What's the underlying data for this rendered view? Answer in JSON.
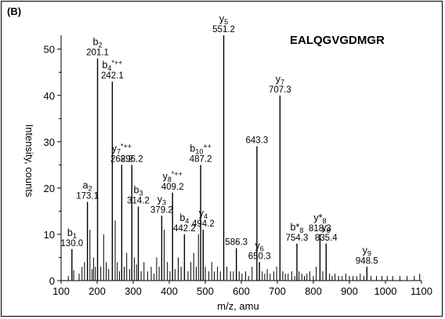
{
  "panel_label": "(B)",
  "chart_data": {
    "type": "bar",
    "title": "EALQGVGDMGR",
    "xlabel": "m/z, amu",
    "ylabel": "Intensity, counts",
    "xlim": [
      100,
      1100
    ],
    "ylim": [
      0,
      53
    ],
    "x_ticks": [
      100,
      200,
      300,
      400,
      500,
      600,
      700,
      800,
      900,
      1000,
      1100
    ],
    "y_ticks": [
      0,
      10,
      20,
      30,
      40,
      50
    ],
    "peaks": [
      {
        "mz": 130.0,
        "intensity": 6.8,
        "ion": "b",
        "sub": "1",
        "sup": "",
        "value": "130.0"
      },
      {
        "mz": 173.1,
        "intensity": 17.0,
        "ion": "a",
        "sub": "2",
        "sup": "",
        "value": "173.1"
      },
      {
        "mz": 201.1,
        "intensity": 48.0,
        "ion": "b",
        "sub": "2",
        "sup": "",
        "value": "201.1"
      },
      {
        "mz": 242.1,
        "intensity": 43.0,
        "ion": "b",
        "sub": "4",
        "sup": "*++",
        "value": "242.1"
      },
      {
        "mz": 268.2,
        "intensity": 25.0,
        "ion": "y",
        "sub": "7",
        "sup": "*++",
        "value": "268.2"
      },
      {
        "mz": 296.2,
        "intensity": 25.0,
        "ion": "",
        "sub": "",
        "sup": "",
        "value": "296.2"
      },
      {
        "mz": 314.2,
        "intensity": 16.0,
        "ion": "b",
        "sub": "3",
        "sup": "",
        "value": "314.2"
      },
      {
        "mz": 379.2,
        "intensity": 14.0,
        "ion": "y",
        "sub": "3",
        "sup": "",
        "value": "379.2"
      },
      {
        "mz": 409.2,
        "intensity": 19.0,
        "ion": "y",
        "sub": "8",
        "sup": "*++",
        "value": "409.2"
      },
      {
        "mz": 442.2,
        "intensity": 10.0,
        "ion": "b",
        "sub": "4",
        "sup": "",
        "value": "442.2"
      },
      {
        "mz": 487.2,
        "intensity": 25.0,
        "ion": "b",
        "sub": "10",
        "sup": "++",
        "value": "487.2"
      },
      {
        "mz": 494.2,
        "intensity": 11.0,
        "ion": "y",
        "sub": "4",
        "sup": "",
        "value": "494.2"
      },
      {
        "mz": 551.2,
        "intensity": 53.0,
        "ion": "y",
        "sub": "5",
        "sup": "",
        "value": "551.2"
      },
      {
        "mz": 586.3,
        "intensity": 7.0,
        "ion": "",
        "sub": "",
        "sup": "",
        "value": "586.3"
      },
      {
        "mz": 643.3,
        "intensity": 29.0,
        "ion": "",
        "sub": "",
        "sup": "",
        "value": "643.3"
      },
      {
        "mz": 650.3,
        "intensity": 4.0,
        "ion": "y",
        "sub": "6",
        "sup": "",
        "value": "650.3"
      },
      {
        "mz": 707.3,
        "intensity": 40.0,
        "ion": "y",
        "sub": "7",
        "sup": "",
        "value": "707.3"
      },
      {
        "mz": 754.3,
        "intensity": 8.0,
        "ion": "b*",
        "sub": "8",
        "sup": "",
        "value": "754.3"
      },
      {
        "mz": 818.3,
        "intensity": 10.0,
        "ion": "y*",
        "sub": "8",
        "sup": "",
        "value": "818.3"
      },
      {
        "mz": 835.4,
        "intensity": 8.0,
        "ion": "y",
        "sub": "8",
        "sup": "",
        "value": "835.4"
      },
      {
        "mz": 948.5,
        "intensity": 3.0,
        "ion": "y",
        "sub": "9",
        "sup": "",
        "value": "948.5"
      }
    ],
    "minor_peaks": [
      [
        120,
        1.0
      ],
      [
        135,
        2.2
      ],
      [
        150,
        1.5
      ],
      [
        158,
        3.0
      ],
      [
        165,
        4.0
      ],
      [
        180,
        11.0
      ],
      [
        186,
        2.5
      ],
      [
        190,
        5.0
      ],
      [
        195,
        3.0
      ],
      [
        210,
        3.0
      ],
      [
        218,
        10.0
      ],
      [
        225,
        4.0
      ],
      [
        232,
        2.5
      ],
      [
        250,
        13.0
      ],
      [
        256,
        4.0
      ],
      [
        262,
        2.0
      ],
      [
        275,
        3.0
      ],
      [
        282,
        6.0
      ],
      [
        290,
        2.5
      ],
      [
        303,
        5.0
      ],
      [
        309,
        3.5
      ],
      [
        322,
        2.0
      ],
      [
        330,
        4.0
      ],
      [
        340,
        2.0
      ],
      [
        350,
        3.0
      ],
      [
        358,
        1.5
      ],
      [
        365,
        5.0
      ],
      [
        372,
        3.0
      ],
      [
        386,
        11.0
      ],
      [
        395,
        4.0
      ],
      [
        402,
        2.0
      ],
      [
        416,
        2.5
      ],
      [
        425,
        5.0
      ],
      [
        433,
        3.0
      ],
      [
        452,
        2.0
      ],
      [
        460,
        4.0
      ],
      [
        468,
        6.0
      ],
      [
        475,
        3.0
      ],
      [
        481,
        10.0
      ],
      [
        500,
        3.0
      ],
      [
        510,
        2.0
      ],
      [
        518,
        4.0
      ],
      [
        525,
        2.0
      ],
      [
        534,
        3.0
      ],
      [
        542,
        2.0
      ],
      [
        560,
        3.0
      ],
      [
        570,
        2.0
      ],
      [
        578,
        2.0
      ],
      [
        594,
        2.0
      ],
      [
        602,
        1.5
      ],
      [
        612,
        2.0
      ],
      [
        620,
        1.0
      ],
      [
        630,
        3.0
      ],
      [
        658,
        2.0
      ],
      [
        665,
        1.5
      ],
      [
        672,
        2.5
      ],
      [
        680,
        1.5
      ],
      [
        690,
        2.0
      ],
      [
        698,
        3.0
      ],
      [
        715,
        2.0
      ],
      [
        722,
        1.5
      ],
      [
        730,
        1.5
      ],
      [
        740,
        2.0
      ],
      [
        748,
        1.0
      ],
      [
        760,
        2.0
      ],
      [
        768,
        1.5
      ],
      [
        775,
        1.0
      ],
      [
        782,
        1.5
      ],
      [
        790,
        2.0
      ],
      [
        800,
        1.0
      ],
      [
        808,
        3.0
      ],
      [
        826,
        2.0
      ],
      [
        845,
        1.5
      ],
      [
        852,
        1.0
      ],
      [
        860,
        1.5
      ],
      [
        870,
        1.0
      ],
      [
        880,
        1.0
      ],
      [
        890,
        1.5
      ],
      [
        900,
        1.0
      ],
      [
        910,
        1.0
      ],
      [
        920,
        1.0
      ],
      [
        930,
        1.5
      ],
      [
        940,
        1.0
      ],
      [
        960,
        1.0
      ],
      [
        975,
        1.0
      ],
      [
        990,
        1.0
      ],
      [
        1005,
        1.0
      ],
      [
        1020,
        1.0
      ],
      [
        1040,
        1.0
      ],
      [
        1060,
        1.0
      ],
      [
        1080,
        1.0
      ],
      [
        1095,
        1.5
      ]
    ]
  }
}
